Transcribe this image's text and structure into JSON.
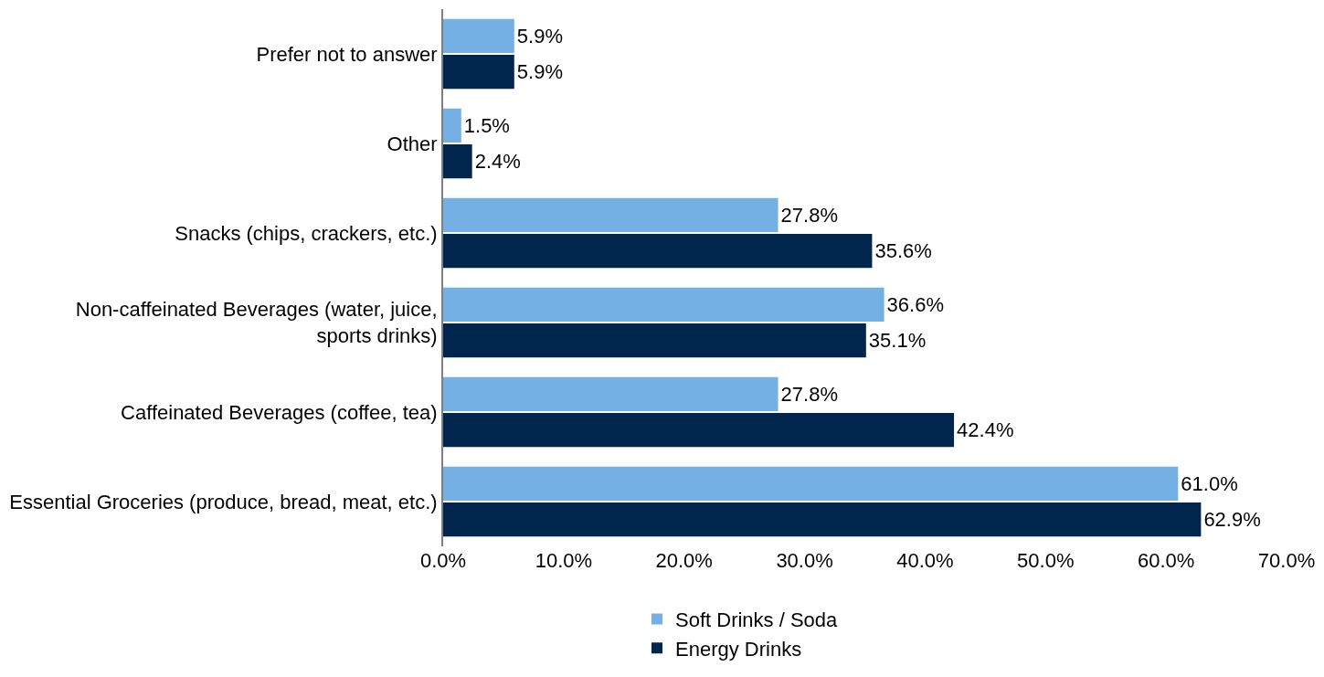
{
  "chart_data": {
    "type": "bar",
    "orientation": "horizontal",
    "categories": [
      "Prefer not to answer",
      "Other",
      "Snacks (chips, crackers, etc.)",
      "Non-caffeinated Beverages (water, juice, sports drinks)",
      "Caffeinated Beverages (coffee, tea)",
      "Essential Groceries (produce, bread, meat, etc.)"
    ],
    "series": [
      {
        "name": "Soft Drinks / Soda",
        "color": "#74b0e4",
        "values": [
          5.9,
          1.5,
          27.8,
          36.6,
          27.8,
          61.0
        ],
        "value_labels": [
          "5.9%",
          "1.5%",
          "27.8%",
          "36.6%",
          "27.8%",
          "61.0%"
        ]
      },
      {
        "name": "Energy Drinks",
        "color": "#00264d",
        "values": [
          5.9,
          2.4,
          35.6,
          35.1,
          42.4,
          62.9
        ],
        "value_labels": [
          "5.9%",
          "2.4%",
          "35.6%",
          "35.1%",
          "42.4%",
          "62.9%"
        ]
      }
    ],
    "xlim": [
      0,
      70
    ],
    "xticks": [
      {
        "value": 0,
        "label": "0.0%"
      },
      {
        "value": 10,
        "label": "10.0%"
      },
      {
        "value": 20,
        "label": "20.0%"
      },
      {
        "value": 30,
        "label": "30.0%"
      },
      {
        "value": 40,
        "label": "40.0%"
      },
      {
        "value": 50,
        "label": "50.0%"
      },
      {
        "value": 60,
        "label": "60.0%"
      },
      {
        "value": 70,
        "label": "70.0%"
      }
    ],
    "grid": false,
    "legend": "bottom"
  }
}
